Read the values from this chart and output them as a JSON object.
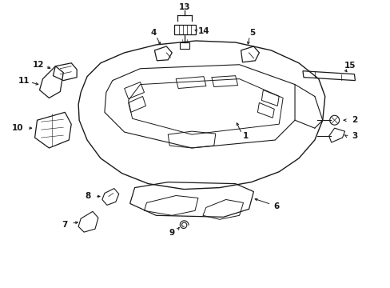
{
  "bg_color": "#ffffff",
  "fig_width": 4.89,
  "fig_height": 3.6,
  "dpi": 100,
  "line_color": "#1a1a1a",
  "label_fontsize": 7.5
}
